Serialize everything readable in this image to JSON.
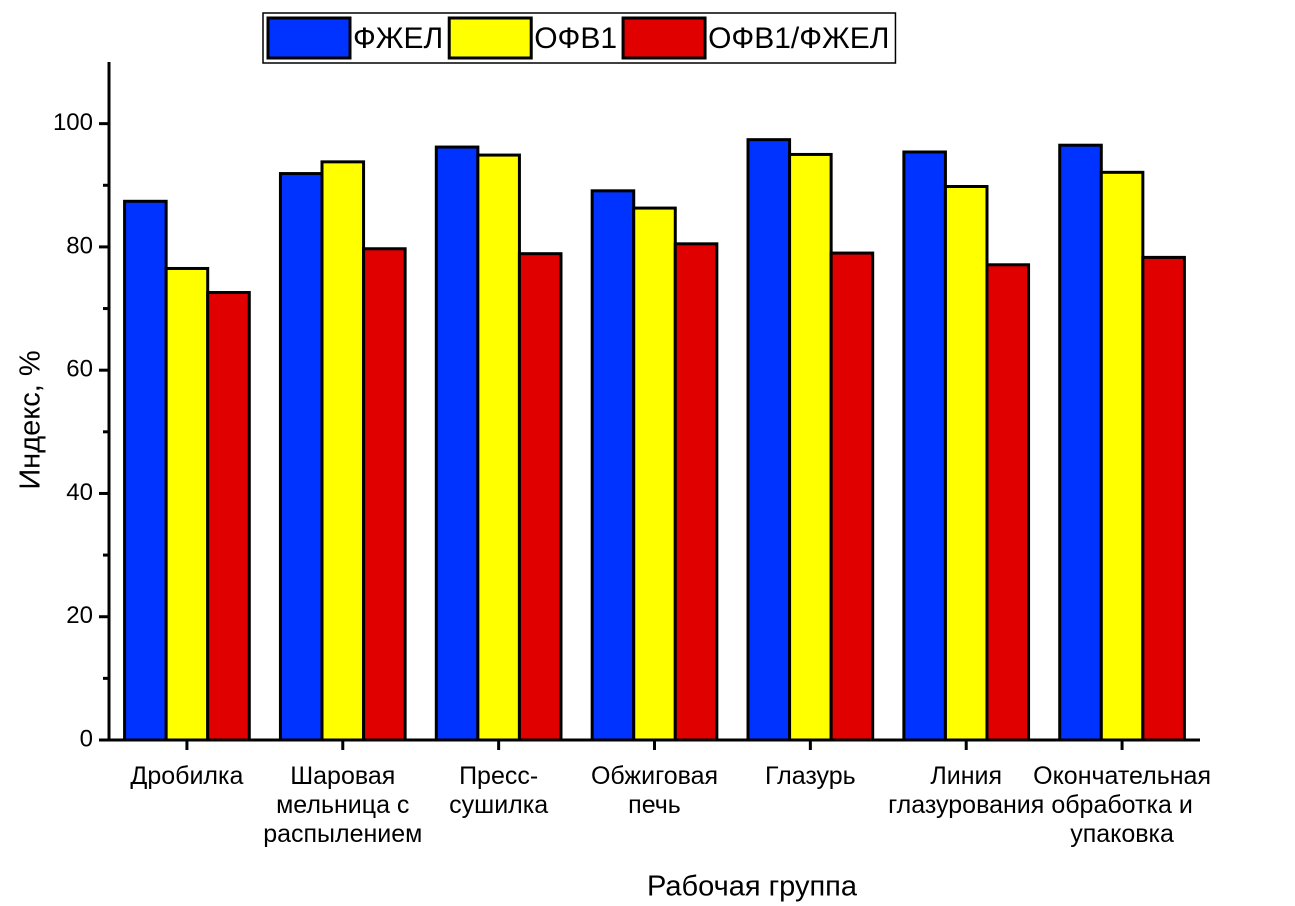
{
  "chart_data": {
    "type": "bar",
    "x_label": "Рабочая группа",
    "y_label": "Индекс, %",
    "categories": [
      "Дробилка",
      "Шаровая\nмельница с\nраспылением",
      "Пресс-\nсушилка",
      "Обжиговая\nпечь",
      "Глазурь",
      "Линия\nглазурования",
      "Окончательная\nобработка и\nупаковка"
    ],
    "series": [
      {
        "name": "ФЖЕЛ",
        "color": "#0033ff",
        "values": [
          87.4,
          91.9,
          96.2,
          89.1,
          97.4,
          95.4,
          96.5
        ]
      },
      {
        "name": "ОФВ1",
        "color": "#ffff00",
        "values": [
          76.5,
          93.8,
          94.9,
          86.3,
          95.0,
          89.8,
          92.1
        ]
      },
      {
        "name": "ОФВ1/ФЖЕЛ",
        "color": "#e00000",
        "values": [
          72.6,
          79.7,
          78.9,
          80.5,
          79.0,
          77.1,
          78.3
        ]
      }
    ],
    "ylim": [
      0,
      110
    ],
    "yticks": [
      0,
      20,
      40,
      60,
      80,
      100
    ],
    "legend": "top"
  }
}
